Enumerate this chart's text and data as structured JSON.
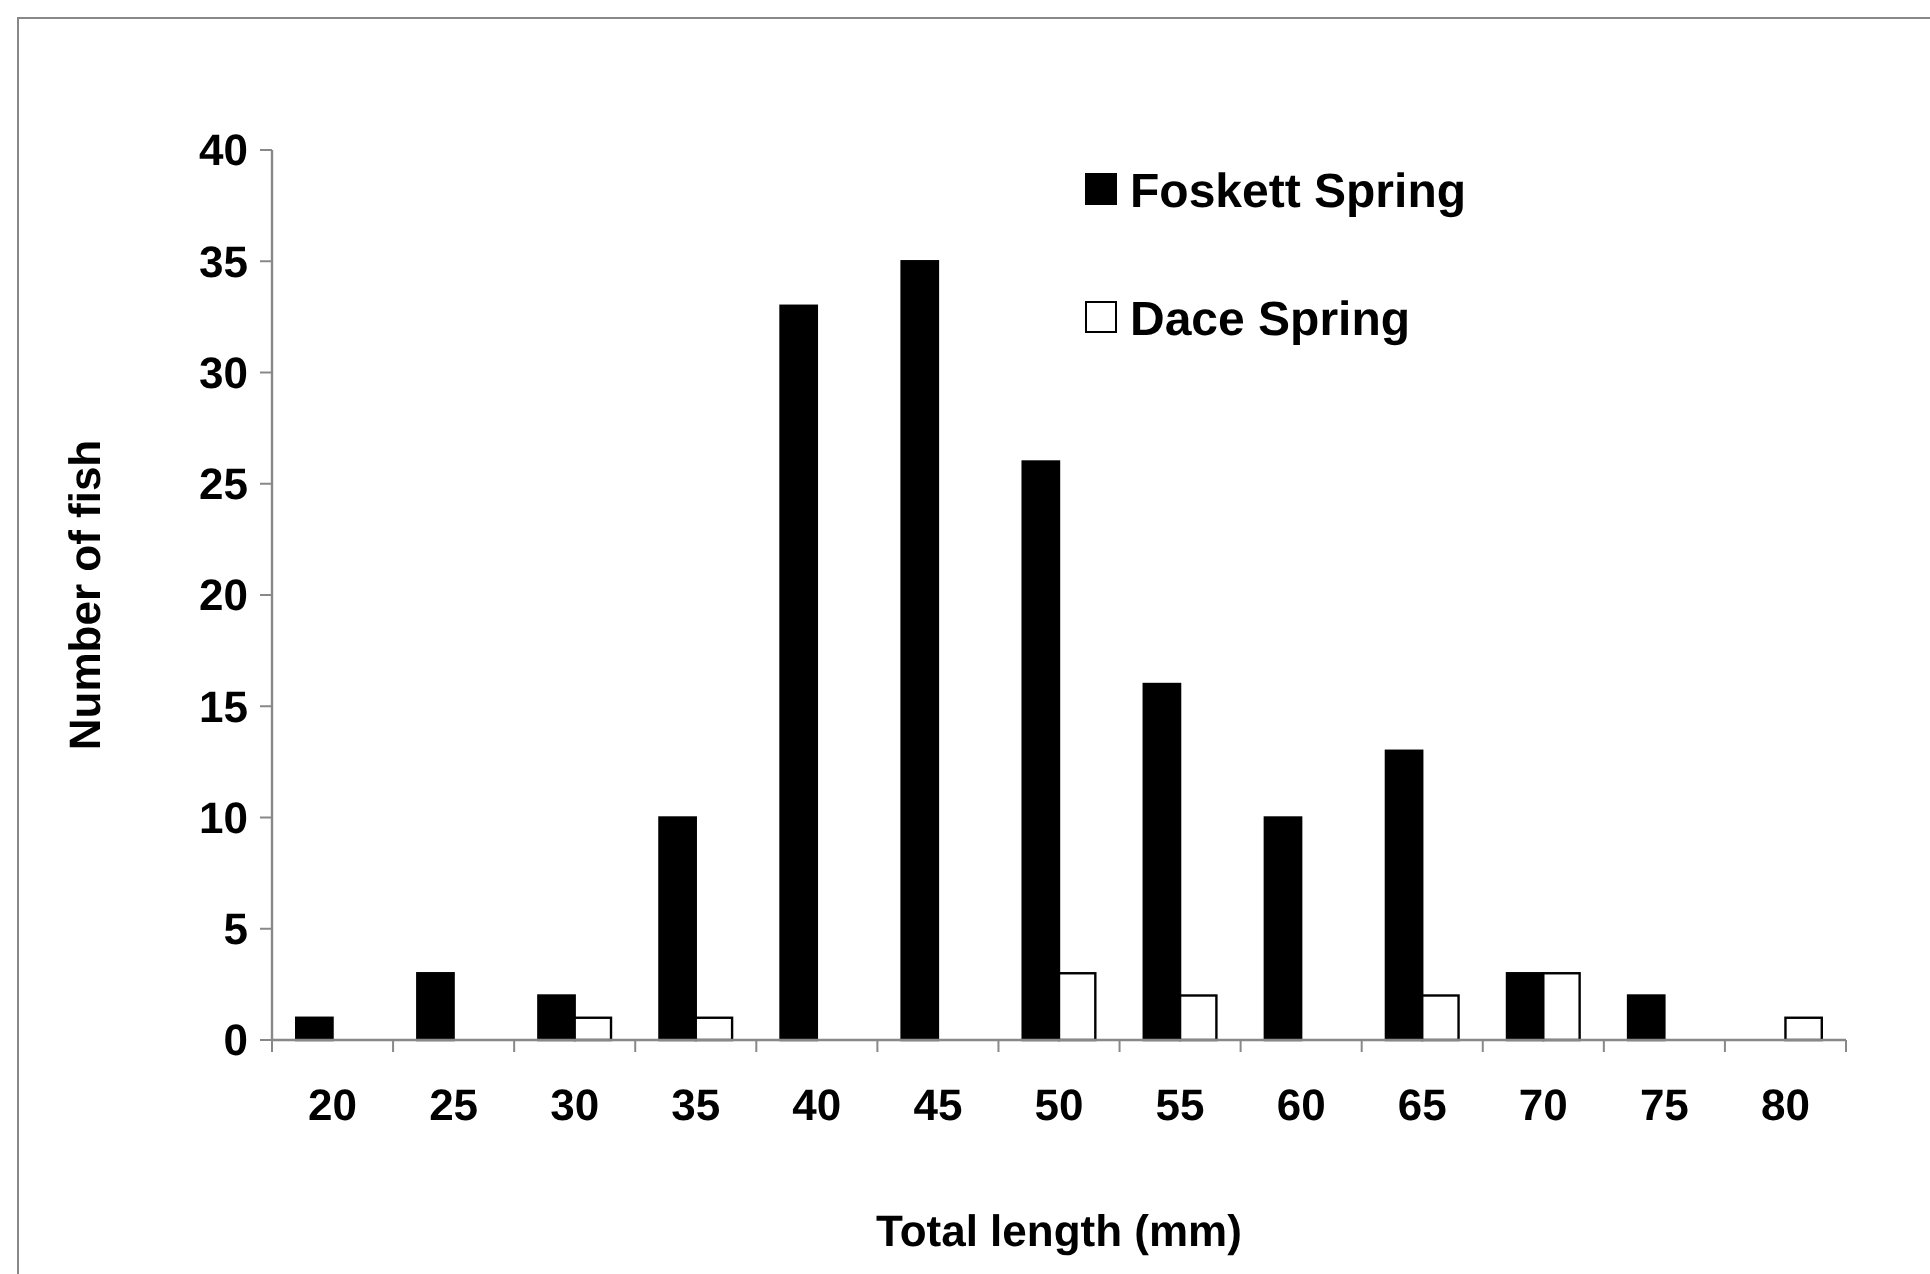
{
  "chart_data": {
    "type": "bar",
    "xlabel": "Total length (mm)",
    "ylabel": "Number of fish",
    "categories": [
      "20",
      "25",
      "30",
      "35",
      "40",
      "45",
      "50",
      "55",
      "60",
      "65",
      "70",
      "75",
      "80"
    ],
    "series": [
      {
        "name": "Foskett Spring",
        "color": "#000000",
        "values": [
          1,
          3,
          2,
          10,
          33,
          35,
          26,
          16,
          10,
          13,
          3,
          2,
          0
        ]
      },
      {
        "name": "Dace Spring",
        "color": "#ffffff",
        "values": [
          0,
          0,
          1,
          1,
          0,
          0,
          3,
          2,
          0,
          2,
          3,
          0,
          1
        ]
      }
    ],
    "ylim": [
      0,
      40
    ],
    "yticks": [
      0,
      5,
      10,
      15,
      20,
      25,
      30,
      35,
      40
    ],
    "grid": false,
    "legend": "top right"
  }
}
